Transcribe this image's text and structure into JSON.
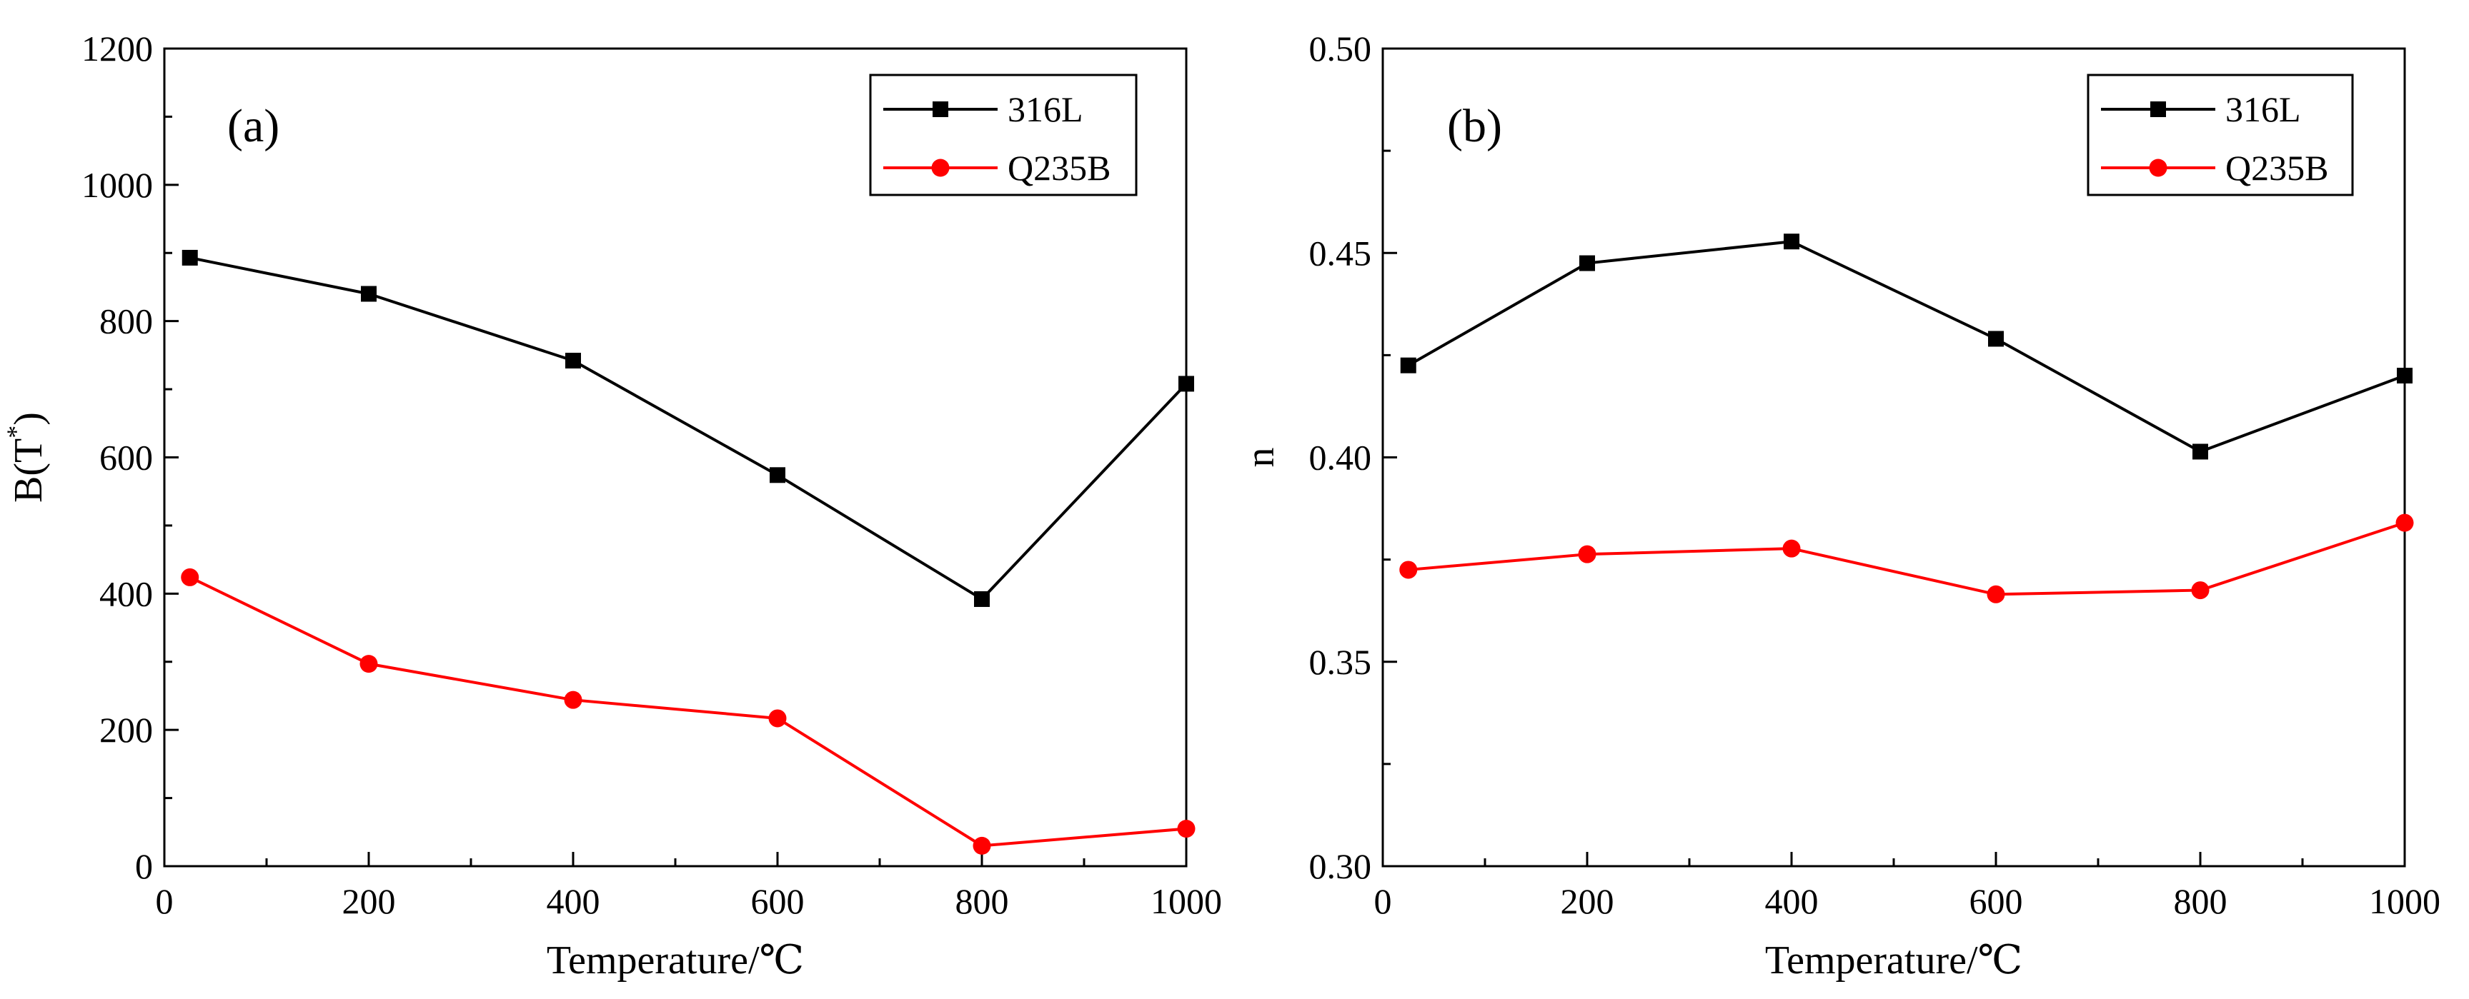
{
  "chart_data": [
    {
      "type": "line",
      "panel_label": "(a)",
      "xlabel": "Temperature/℃",
      "ylabel_main": "B(T",
      "ylabel_sup": "*",
      "ylabel_close": ")",
      "xlim": [
        0,
        1000
      ],
      "ylim": [
        0,
        1200
      ],
      "xticks": [
        0,
        200,
        400,
        600,
        800,
        1000
      ],
      "yticks": [
        0,
        200,
        400,
        600,
        800,
        1000,
        1200
      ],
      "x": [
        25,
        200,
        400,
        600,
        800,
        1000
      ],
      "legend_position": "top-right",
      "series": [
        {
          "name": "316L",
          "color": "#000000",
          "marker": "square",
          "values": [
            893,
            840,
            742,
            574,
            392,
            708
          ]
        },
        {
          "name": "Q235B",
          "color": "#ff0000",
          "marker": "circle",
          "values": [
            424,
            297,
            244,
            217,
            30,
            55
          ]
        }
      ]
    },
    {
      "type": "line",
      "panel_label": "(b)",
      "xlabel": "Temperature/℃",
      "ylabel_main": "n",
      "ylabel_sup": "",
      "ylabel_close": "",
      "xlim": [
        0,
        1000
      ],
      "ylim": [
        0.3,
        0.5
      ],
      "xticks": [
        0,
        200,
        400,
        600,
        800,
        1000
      ],
      "yticks": [
        0.3,
        0.35,
        0.4,
        0.45,
        0.5
      ],
      "ytick_decimals": 2,
      "x": [
        25,
        200,
        400,
        600,
        800,
        1000
      ],
      "legend_position": "top-right",
      "series": [
        {
          "name": "316L",
          "color": "#000000",
          "marker": "square",
          "values": [
            0.4225,
            0.4475,
            0.4528,
            0.429,
            0.4014,
            0.42
          ]
        },
        {
          "name": "Q235B",
          "color": "#ff0000",
          "marker": "circle",
          "values": [
            0.3725,
            0.3763,
            0.3777,
            0.3665,
            0.3675,
            0.384
          ]
        }
      ]
    }
  ]
}
